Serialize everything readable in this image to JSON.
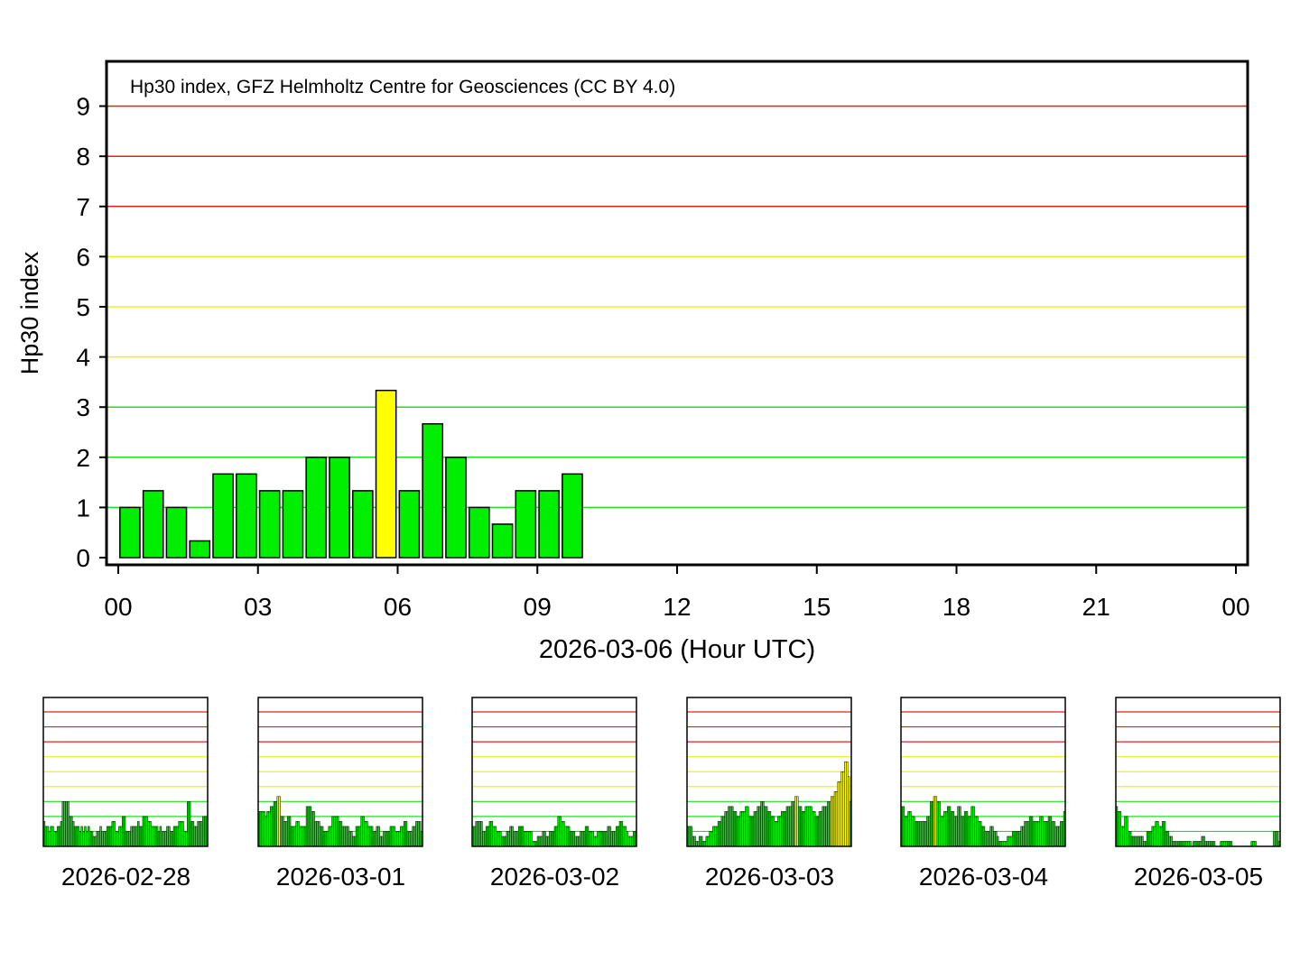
{
  "colors": {
    "quiet": "#00ee00",
    "active": "#ffff00",
    "storm": "#cc0000",
    "grid_low": "#22dd22",
    "grid_mid": "#eeee22",
    "grid_high": "#dd2222",
    "frame": "#000000"
  },
  "chart_data": [
    {
      "type": "bar",
      "title": "Hp30 index, GFZ Helmholtz Centre for Geosciences (CC BY 4.0)",
      "xlabel": "2026-03-06 (Hour UTC)",
      "ylabel": "Hp30 index",
      "xlim": [
        0,
        24
      ],
      "ylim": [
        0,
        9
      ],
      "y_ticks": [
        "0",
        "1",
        "2",
        "3",
        "4",
        "5",
        "6",
        "7",
        "8",
        "9"
      ],
      "x_ticks": [
        "00",
        "03",
        "06",
        "09",
        "12",
        "15",
        "18",
        "21",
        "00"
      ],
      "bar_width_hours": 0.5,
      "grid": "horizontal, colored by level",
      "x": [
        0.25,
        0.75,
        1.25,
        1.75,
        2.25,
        2.75,
        3.25,
        3.75,
        4.25,
        4.75,
        5.25,
        5.75,
        6.25,
        6.75,
        7.25,
        7.75,
        8.25,
        8.75,
        9.25,
        9.75
      ],
      "values": [
        1.0,
        1.333,
        1.0,
        0.333,
        1.667,
        1.667,
        1.333,
        1.333,
        2.0,
        2.0,
        1.333,
        3.333,
        1.333,
        2.667,
        2.0,
        1.0,
        0.667,
        1.333,
        1.333,
        1.667
      ]
    },
    {
      "type": "bar",
      "xlabel": "2026-02-28",
      "ylim": [
        0,
        9
      ],
      "values": [
        1.667,
        1.333,
        1.333,
        1.0,
        1.333,
        1.333,
        1.0,
        1.0,
        1.333,
        1.333,
        1.667,
        3.0,
        3.0,
        3.0,
        3.0,
        2.0,
        2.0,
        1.667,
        1.333,
        1.333,
        1.333,
        1.0,
        1.333,
        1.0,
        1.333,
        1.0,
        1.333,
        1.0,
        1.0,
        0.667,
        0.667,
        1.0,
        1.0,
        1.333,
        1.0,
        1.0,
        1.0,
        1.333,
        1.333,
        1.333,
        1.667,
        1.667,
        1.0,
        1.0,
        1.333,
        1.333,
        2.0,
        2.0,
        1.0,
        1.0,
        1.0,
        1.333,
        1.333,
        1.333,
        1.333,
        1.667,
        1.333,
        1.333,
        2.0,
        2.0,
        2.0,
        1.667,
        1.667,
        1.333,
        1.333,
        1.333,
        1.333,
        1.0,
        1.333,
        1.0,
        1.0,
        1.0,
        1.333,
        1.333,
        1.0,
        1.0,
        1.333,
        1.333,
        1.333,
        1.667,
        1.667,
        1.667,
        1.0,
        1.0,
        3.0,
        3.0,
        1.667,
        1.667,
        1.333,
        1.333,
        1.667,
        1.667,
        1.667,
        2.0,
        2.0,
        2.0
      ]
    },
    {
      "type": "bar",
      "xlabel": "2026-03-01",
      "ylim": [
        0,
        9
      ],
      "values": [
        2.333,
        2.333,
        2.333,
        2.333,
        2.0,
        2.333,
        2.333,
        2.667,
        2.667,
        3.0,
        3.0,
        3.333,
        3.333,
        2.0,
        2.0,
        1.667,
        1.667,
        2.0,
        2.0,
        1.333,
        1.333,
        1.333,
        1.667,
        1.667,
        1.333,
        1.333,
        1.333,
        1.333,
        2.667,
        2.667,
        2.667,
        2.333,
        2.333,
        1.667,
        1.667,
        1.667,
        1.333,
        1.333,
        1.0,
        1.0,
        1.0,
        1.333,
        1.333,
        2.0,
        2.0,
        2.0,
        2.0,
        1.667,
        1.667,
        1.333,
        1.333,
        1.333,
        1.333,
        1.0,
        1.0,
        0.667,
        0.667,
        1.333,
        1.333,
        1.333,
        2.0,
        2.0,
        1.667,
        1.667,
        1.333,
        1.333,
        1.333,
        1.0,
        1.0,
        1.333,
        1.333,
        0.667,
        0.667,
        1.0,
        1.0,
        1.0,
        1.0,
        1.333,
        1.333,
        1.333,
        1.0,
        1.0,
        1.0,
        1.333,
        1.333,
        1.667,
        1.667,
        1.0,
        1.0,
        1.0,
        1.333,
        1.333,
        1.667,
        1.667,
        1.667,
        1.0
      ]
    },
    {
      "type": "bar",
      "xlabel": "2026-03-02",
      "ylim": [
        0,
        9
      ],
      "values": [
        1.333,
        1.333,
        1.667,
        1.667,
        1.667,
        1.667,
        1.0,
        1.0,
        1.333,
        1.333,
        1.667,
        1.667,
        1.333,
        1.333,
        1.0,
        1.0,
        1.0,
        0.667,
        0.667,
        0.667,
        1.0,
        1.0,
        1.333,
        1.333,
        1.0,
        1.0,
        1.0,
        1.333,
        1.333,
        1.333,
        1.0,
        1.0,
        1.0,
        1.0,
        1.0,
        0.333,
        0.333,
        0.333,
        0.667,
        0.667,
        0.667,
        1.0,
        1.0,
        0.667,
        0.667,
        1.0,
        1.0,
        1.0,
        1.333,
        1.333,
        2.0,
        2.0,
        1.667,
        1.667,
        1.333,
        1.333,
        1.333,
        1.0,
        1.0,
        1.0,
        0.667,
        0.667,
        0.667,
        1.0,
        1.0,
        1.0,
        1.333,
        1.333,
        1.0,
        1.0,
        1.0,
        0.667,
        0.667,
        1.0,
        1.0,
        1.0,
        1.0,
        1.0,
        1.0,
        1.333,
        1.333,
        1.0,
        1.0,
        1.0,
        1.333,
        1.333,
        1.667,
        1.667,
        1.333,
        1.333,
        1.0,
        0.667,
        0.667,
        0.667,
        1.0,
        1.0
      ]
    },
    {
      "type": "bar",
      "xlabel": "2026-03-03",
      "ylim": [
        0,
        9
      ],
      "values": [
        1.333,
        1.333,
        1.333,
        0.667,
        0.667,
        0.333,
        0.333,
        0.667,
        0.667,
        0.333,
        0.333,
        0.667,
        0.667,
        1.0,
        1.0,
        1.333,
        1.333,
        1.333,
        1.667,
        1.667,
        2.0,
        2.0,
        2.333,
        2.333,
        2.667,
        2.667,
        2.667,
        2.333,
        2.333,
        2.0,
        2.0,
        2.333,
        2.333,
        2.333,
        2.667,
        2.667,
        2.0,
        2.0,
        2.0,
        2.333,
        2.333,
        2.667,
        2.667,
        3.0,
        3.0,
        2.667,
        2.667,
        2.333,
        2.333,
        2.0,
        2.0,
        1.667,
        1.667,
        2.0,
        2.0,
        2.333,
        2.333,
        2.333,
        2.667,
        2.667,
        2.667,
        3.0,
        3.0,
        3.333,
        3.333,
        2.667,
        2.667,
        2.333,
        2.333,
        2.667,
        2.667,
        2.667,
        2.667,
        2.333,
        2.333,
        2.0,
        2.0,
        2.333,
        2.333,
        2.667,
        2.667,
        2.667,
        3.0,
        3.0,
        3.333,
        3.333,
        3.667,
        3.667,
        4.333,
        4.333,
        5.0,
        5.0,
        5.667,
        5.667,
        4.667,
        3.0
      ]
    },
    {
      "type": "bar",
      "xlabel": "2026-03-04",
      "ylim": [
        0,
        9
      ],
      "values": [
        2.667,
        2.667,
        2.0,
        2.0,
        2.333,
        2.333,
        2.0,
        2.0,
        1.667,
        1.667,
        1.667,
        1.667,
        1.667,
        1.667,
        1.667,
        2.0,
        2.0,
        3.0,
        3.0,
        3.333,
        3.333,
        3.0,
        3.0,
        2.0,
        2.0,
        2.333,
        2.333,
        2.667,
        2.667,
        2.333,
        2.333,
        2.0,
        2.0,
        2.667,
        2.667,
        2.0,
        2.0,
        2.333,
        2.333,
        2.0,
        2.0,
        2.667,
        2.667,
        2.0,
        2.0,
        1.667,
        1.667,
        1.333,
        1.333,
        1.0,
        1.0,
        1.0,
        1.333,
        1.333,
        1.0,
        1.0,
        0.667,
        0.333,
        0.333,
        0.333,
        0.333,
        0.333,
        0.667,
        0.667,
        0.667,
        1.0,
        1.0,
        1.0,
        1.0,
        1.0,
        1.333,
        1.333,
        1.667,
        1.667,
        1.667,
        2.0,
        2.0,
        1.667,
        1.667,
        1.667,
        1.667,
        2.0,
        2.0,
        1.667,
        1.667,
        1.667,
        2.0,
        2.0,
        1.667,
        1.667,
        1.333,
        1.333,
        1.333,
        1.667,
        1.667,
        2.333
      ]
    },
    {
      "type": "bar",
      "xlabel": "2026-03-05",
      "ylim": [
        0,
        9
      ],
      "values": [
        2.667,
        2.333,
        2.333,
        1.333,
        1.333,
        2.0,
        2.0,
        1.0,
        1.0,
        0.667,
        0.667,
        0.667,
        0.667,
        0.667,
        0.667,
        0.667,
        0.333,
        0.333,
        1.0,
        1.0,
        1.0,
        1.333,
        1.333,
        1.667,
        1.667,
        1.333,
        1.333,
        1.667,
        1.667,
        1.0,
        1.0,
        0.667,
        0.667,
        0.333,
        0.333,
        0.333,
        0.333,
        0.333,
        0.333,
        0.333,
        0.333,
        0.333,
        0.333,
        0.333,
        0.0,
        0.333,
        0.333,
        0.333,
        0.333,
        0.333,
        0.667,
        0.667,
        0.333,
        0.333,
        0.333,
        0.333,
        0.333,
        0.333,
        0.0,
        0.0,
        0.0,
        0.333,
        0.333,
        0.333,
        0.333,
        0.333,
        0.333,
        0.333,
        0.0,
        0.0,
        0.0,
        0.0,
        0.0,
        0.0,
        0.0,
        0.0,
        0.0,
        0.0,
        0.0,
        0.333,
        0.333,
        0.333,
        0.0,
        0.0,
        0.0,
        0.0,
        0.0,
        0.0,
        0.0,
        0.0,
        0.0,
        0.0,
        1.0,
        1.0,
        1.0,
        0.333
      ]
    }
  ]
}
